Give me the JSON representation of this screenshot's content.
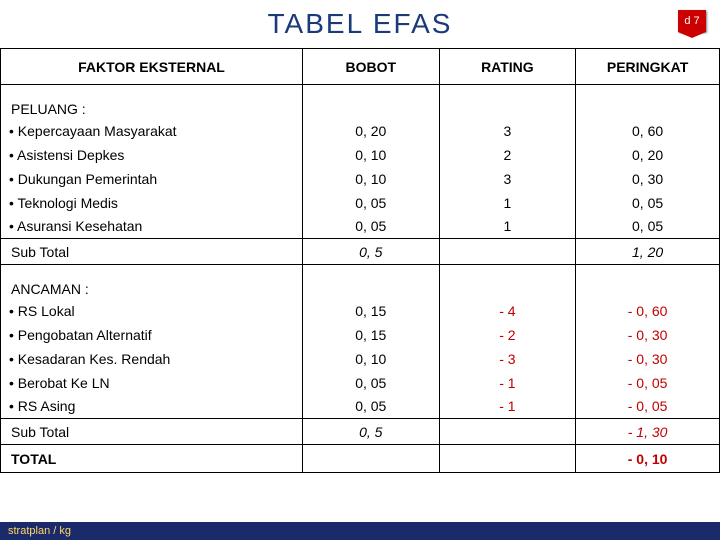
{
  "title": "TABEL  EFAS",
  "badge": "d 7",
  "footer": "stratplan / kg",
  "columns": {
    "factor": "FAKTOR EKSTERNAL",
    "bobot": "BOBOT",
    "rating": "RATING",
    "peringkat": "PERINGKAT"
  },
  "peluang": {
    "header": "PELUANG :",
    "items": [
      {
        "label": "Kepercayaan Masyarakat",
        "bobot": "0, 20",
        "rating": "3",
        "peringkat": "0, 60"
      },
      {
        "label": "Asistensi Depkes",
        "bobot": "0, 10",
        "rating": "2",
        "peringkat": "0, 20"
      },
      {
        "label": "Dukungan Pemerintah",
        "bobot": "0, 10",
        "rating": "3",
        "peringkat": "0, 30"
      },
      {
        "label": "Teknologi Medis",
        "bobot": "0, 05",
        "rating": "1",
        "peringkat": "0, 05"
      },
      {
        "label": "Asuransi Kesehatan",
        "bobot": "0, 05",
        "rating": "1",
        "peringkat": "0, 05"
      }
    ],
    "subtotal": {
      "label": "Sub Total",
      "bobot": "0, 5",
      "peringkat": "1, 20"
    }
  },
  "ancaman": {
    "header": "ANCAMAN :",
    "items": [
      {
        "label": "RS Lokal",
        "bobot": "0, 15",
        "rating": "- 4",
        "peringkat": "- 0, 60"
      },
      {
        "label": "Pengobatan Alternatif",
        "bobot": "0, 15",
        "rating": "- 2",
        "peringkat": "- 0, 30"
      },
      {
        "label": "Kesadaran Kes. Rendah",
        "bobot": "0, 10",
        "rating": "- 3",
        "peringkat": "- 0, 30"
      },
      {
        "label": "Berobat  Ke LN",
        "bobot": "0, 05",
        "rating": "- 1",
        "peringkat": "- 0, 05"
      },
      {
        "label": "RS Asing",
        "bobot": "0, 05",
        "rating": "- 1",
        "peringkat": "- 0, 05"
      }
    ],
    "subtotal": {
      "label": "Sub Total",
      "bobot": "0, 5",
      "peringkat": "- 1, 30"
    }
  },
  "total": {
    "label": "TOTAL",
    "peringkat": "- 0, 10"
  },
  "styling": {
    "title_color": "#1a3a7a",
    "badge_bg": "#c00",
    "footer_bg": "#1a2a6a",
    "footer_color": "#ffd966",
    "neg_color": "#c00000",
    "border_color": "#000000",
    "font_family": "Arial",
    "title_fontsize": 28,
    "cell_fontsize": 14
  }
}
